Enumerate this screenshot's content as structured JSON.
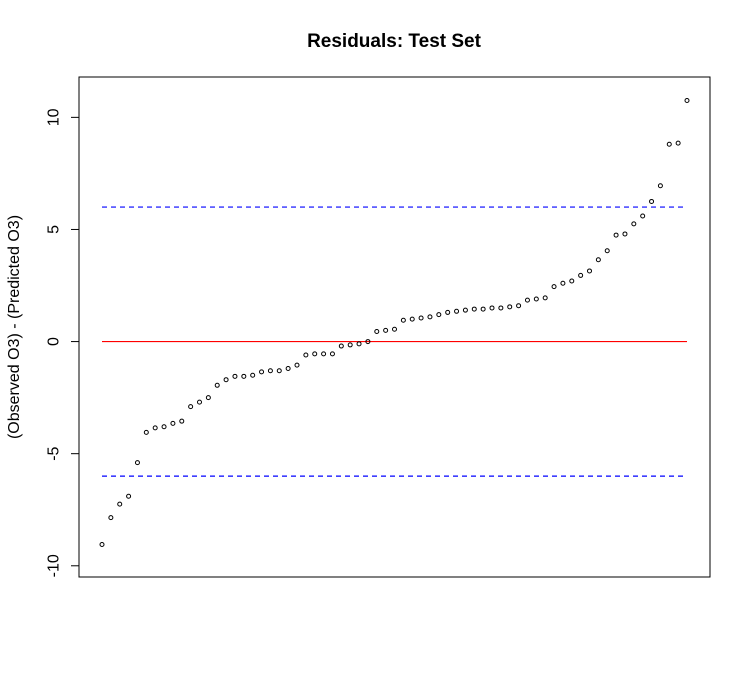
{
  "chart_data": {
    "type": "scatter",
    "title": "Residuals: Test Set",
    "xlabel": "",
    "ylabel": "(Observed O3) - (Predicted O3)",
    "ylim": [
      -10.5,
      11.8
    ],
    "yticks": [
      -10,
      -5,
      0,
      5,
      10
    ],
    "grid": false,
    "legend": "none",
    "x_axis_shown": false,
    "reference_lines": [
      {
        "value": 0,
        "color": "#ff0000",
        "style": "solid"
      },
      {
        "value": 6,
        "color": "#0000ff",
        "style": "dashed"
      },
      {
        "value": -6,
        "color": "#0000ff",
        "style": "dashed"
      }
    ],
    "point_color": "#000000",
    "series": [
      {
        "values": [
          -9.05,
          -7.85,
          -7.25,
          -6.9,
          -5.4,
          -4.05,
          -3.85,
          -3.8,
          -3.65,
          -3.55,
          -2.9,
          -2.7,
          -2.5,
          -1.95,
          -1.7,
          -1.55,
          -1.55,
          -1.5,
          -1.35,
          -1.3,
          -1.3,
          -1.2,
          -1.05,
          -0.6,
          -0.55,
          -0.55,
          -0.55,
          -0.2,
          -0.15,
          -0.1,
          0.0,
          0.45,
          0.5,
          0.55,
          0.95,
          1.0,
          1.05,
          1.1,
          1.2,
          1.3,
          1.35,
          1.4,
          1.45,
          1.45,
          1.5,
          1.5,
          1.55,
          1.6,
          1.85,
          1.9,
          1.95,
          2.45,
          2.6,
          2.7,
          2.95,
          3.15,
          3.65,
          4.05,
          4.75,
          4.8,
          5.25,
          5.6,
          6.25,
          6.95,
          8.8,
          8.85,
          10.75
        ]
      }
    ]
  }
}
